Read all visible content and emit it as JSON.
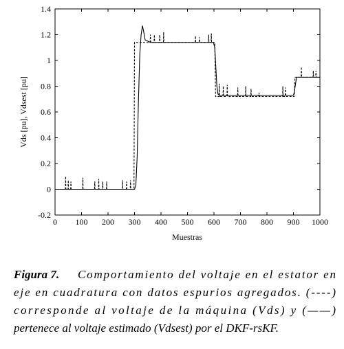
{
  "chart_data": {
    "type": "line",
    "xlabel": "Muestras",
    "ylabel": "Vds [pu], Vdsest [pu]",
    "xlim": [
      0,
      1000
    ],
    "xticks": [
      0,
      100,
      200,
      300,
      400,
      500,
      600,
      700,
      800,
      900,
      1000
    ],
    "ylim": [
      -0.2,
      1.4
    ],
    "yticks": [
      -0.2,
      0,
      0.2,
      0.4,
      0.6,
      0.8,
      1,
      1.2,
      1.4
    ],
    "grid": false,
    "series": [
      {
        "color": "#000000",
        "line_style": "dashed",
        "x": [
          0,
          39,
          40,
          41,
          49,
          50,
          51,
          59,
          60,
          61,
          104,
          105,
          106,
          149,
          150,
          151,
          164,
          165,
          166,
          179,
          180,
          181,
          194,
          195,
          196,
          254,
          255,
          256,
          269,
          270,
          271,
          284,
          285,
          286,
          298,
          300,
          359,
          360,
          361,
          374,
          375,
          376,
          394,
          395,
          396,
          409,
          410,
          411,
          529,
          530,
          531,
          544,
          545,
          546,
          579,
          580,
          581,
          589,
          590,
          591,
          603,
          606,
          619,
          620,
          621,
          634,
          635,
          636,
          649,
          650,
          651,
          689,
          690,
          691,
          719,
          720,
          721,
          739,
          740,
          741,
          769,
          770,
          771,
          859,
          860,
          861,
          869,
          870,
          871,
          903,
          906,
          929,
          930,
          931,
          974,
          975,
          976,
          984,
          985,
          986,
          1000
        ],
        "values": [
          0,
          0,
          0.1,
          0,
          0,
          0.07,
          0,
          0,
          0.06,
          0,
          0,
          0.09,
          0,
          0,
          0.06,
          0,
          0,
          0.08,
          0,
          0,
          0.06,
          0,
          0,
          0.06,
          0,
          0,
          0.07,
          0,
          0,
          0.06,
          0,
          0,
          0.07,
          0,
          0,
          1.14,
          1.14,
          1.2,
          1.14,
          1.14,
          1.2,
          1.14,
          1.14,
          1.2,
          1.14,
          1.14,
          1.22,
          1.14,
          1.14,
          1.19,
          1.14,
          1.14,
          1.18,
          1.14,
          1.14,
          1.2,
          1.14,
          1.14,
          1.21,
          1.14,
          1.14,
          0.72,
          0.72,
          0.82,
          0.72,
          0.72,
          0.8,
          0.72,
          0.72,
          0.81,
          0.72,
          0.72,
          0.79,
          0.72,
          0.72,
          0.8,
          0.72,
          0.72,
          0.78,
          0.72,
          0.72,
          0.75,
          0.72,
          0.72,
          0.8,
          0.72,
          0.72,
          0.79,
          0.72,
          0.72,
          0.87,
          0.87,
          0.95,
          0.87,
          0.87,
          0.92,
          0.87,
          0.87,
          0.92,
          0.87,
          0.87
        ]
      },
      {
        "color": "#000000",
        "line_style": "solid",
        "x": [
          0,
          300,
          305,
          310,
          315,
          320,
          325,
          330,
          335,
          340,
          350,
          360,
          598,
          603,
          607,
          611,
          615,
          620,
          900,
          904,
          908,
          912,
          1000
        ],
        "values": [
          0,
          0,
          0.03,
          0.25,
          0.7,
          1.05,
          1.2,
          1.27,
          1.22,
          1.16,
          1.15,
          1.14,
          1.14,
          1.1,
          0.95,
          0.8,
          0.74,
          0.73,
          0.73,
          0.76,
          0.82,
          0.87,
          0.87
        ]
      }
    ]
  },
  "caption": {
    "label": "Figura 7.",
    "lines": [
      "Comportamiento del voltaje en el estator en",
      "eje en cuadratura con datos espurios agregados. (----)",
      "corresponde al voltaje de la máquina (Vds) y (——)",
      "pertenece al voltaje estimado (Vdsest) por el DKF-rsKF."
    ]
  }
}
